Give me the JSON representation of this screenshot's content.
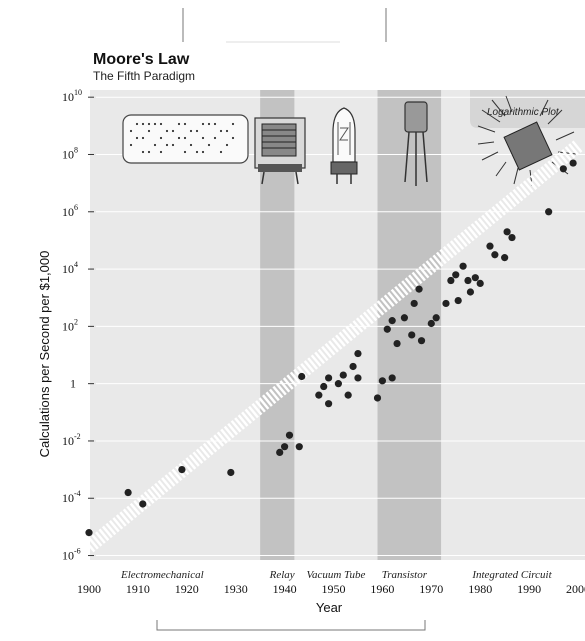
{
  "chart_data": {
    "type": "scatter",
    "title": "Moore's Law",
    "subtitle": "The Fifth Paradigm",
    "badge": "Logarithmic Plot",
    "xlabel": "Year",
    "ylabel": "Calculations per Second per $1,000",
    "xlim": [
      1900,
      2000
    ],
    "ylim": [
      -6.4,
      10.6
    ],
    "yscale": "log10",
    "x_ticks": [
      1900,
      1910,
      1920,
      1930,
      1940,
      1950,
      1960,
      1970,
      1980,
      1990,
      2000
    ],
    "y_ticks": [
      {
        "exp": 10,
        "base": "10",
        "sup": "10"
      },
      {
        "exp": 8,
        "base": "10",
        "sup": "8"
      },
      {
        "exp": 6,
        "base": "10",
        "sup": "6"
      },
      {
        "exp": 4,
        "base": "10",
        "sup": "4"
      },
      {
        "exp": 2,
        "base": "10",
        "sup": "2"
      },
      {
        "exp": 0,
        "base": "1",
        "sup": ""
      },
      {
        "exp": -2,
        "base": "10",
        "sup": "-2"
      },
      {
        "exp": -4,
        "base": "10",
        "sup": "-4"
      },
      {
        "exp": -6,
        "base": "10",
        "sup": "-6"
      }
    ],
    "grid": true,
    "eras": [
      {
        "label": "Electromechanical",
        "label_x": 1915,
        "shaded": false
      },
      {
        "label": "Relay",
        "label_x": 1939.5,
        "start": 1935,
        "end": 1942,
        "shaded": true
      },
      {
        "label": "Vacuum Tube",
        "label_x": 1950.5,
        "shaded": false
      },
      {
        "label": "Transistor",
        "label_x": 1964.5,
        "start": 1959,
        "end": 1972,
        "shaded": true
      },
      {
        "label": "Integrated Circuit",
        "label_x": 1986.5,
        "shaded": false
      }
    ],
    "trend": {
      "x": [
        1900,
        2000
      ],
      "log_y": [
        -5.7,
        8.3
      ]
    },
    "points": [
      {
        "x": 1900,
        "log_y": -5.2
      },
      {
        "x": 1908,
        "log_y": -3.8
      },
      {
        "x": 1911,
        "log_y": -4.2
      },
      {
        "x": 1919,
        "log_y": -3.0
      },
      {
        "x": 1929,
        "log_y": -3.1
      },
      {
        "x": 1939,
        "log_y": -2.4
      },
      {
        "x": 1940,
        "log_y": -2.2
      },
      {
        "x": 1941,
        "log_y": -1.8
      },
      {
        "x": 1943,
        "log_y": -2.2
      },
      {
        "x": 1943.5,
        "log_y": 0.25
      },
      {
        "x": 1947,
        "log_y": -0.4
      },
      {
        "x": 1948,
        "log_y": -0.1
      },
      {
        "x": 1949,
        "log_y": -0.7
      },
      {
        "x": 1949,
        "log_y": 0.2
      },
      {
        "x": 1951,
        "log_y": 0.0
      },
      {
        "x": 1952,
        "log_y": 0.3
      },
      {
        "x": 1953,
        "log_y": -0.4
      },
      {
        "x": 1954,
        "log_y": 0.6
      },
      {
        "x": 1955,
        "log_y": 1.05
      },
      {
        "x": 1955,
        "log_y": 0.2
      },
      {
        "x": 1959,
        "log_y": -0.5
      },
      {
        "x": 1960,
        "log_y": 0.1
      },
      {
        "x": 1961,
        "log_y": 1.9
      },
      {
        "x": 1962,
        "log_y": 0.2
      },
      {
        "x": 1962,
        "log_y": 2.2
      },
      {
        "x": 1963,
        "log_y": 1.4
      },
      {
        "x": 1964.5,
        "log_y": 2.3
      },
      {
        "x": 1966,
        "log_y": 1.7
      },
      {
        "x": 1966.5,
        "log_y": 2.8
      },
      {
        "x": 1967.5,
        "log_y": 3.3
      },
      {
        "x": 1968,
        "log_y": 1.5
      },
      {
        "x": 1970,
        "log_y": 2.1
      },
      {
        "x": 1971,
        "log_y": 2.3
      },
      {
        "x": 1973,
        "log_y": 2.8
      },
      {
        "x": 1974,
        "log_y": 3.6
      },
      {
        "x": 1975,
        "log_y": 3.8
      },
      {
        "x": 1975.5,
        "log_y": 2.9
      },
      {
        "x": 1976.5,
        "log_y": 4.1
      },
      {
        "x": 1977.5,
        "log_y": 3.6
      },
      {
        "x": 1978,
        "log_y": 3.2
      },
      {
        "x": 1979,
        "log_y": 3.7
      },
      {
        "x": 1980,
        "log_y": 3.5
      },
      {
        "x": 1982,
        "log_y": 4.8
      },
      {
        "x": 1983,
        "log_y": 4.5
      },
      {
        "x": 1985,
        "log_y": 4.4
      },
      {
        "x": 1985.5,
        "log_y": 5.3
      },
      {
        "x": 1986.5,
        "log_y": 5.1
      },
      {
        "x": 1994,
        "log_y": 6.0
      },
      {
        "x": 1997,
        "log_y": 7.5
      },
      {
        "x": 1999,
        "log_y": 7.7
      }
    ]
  }
}
